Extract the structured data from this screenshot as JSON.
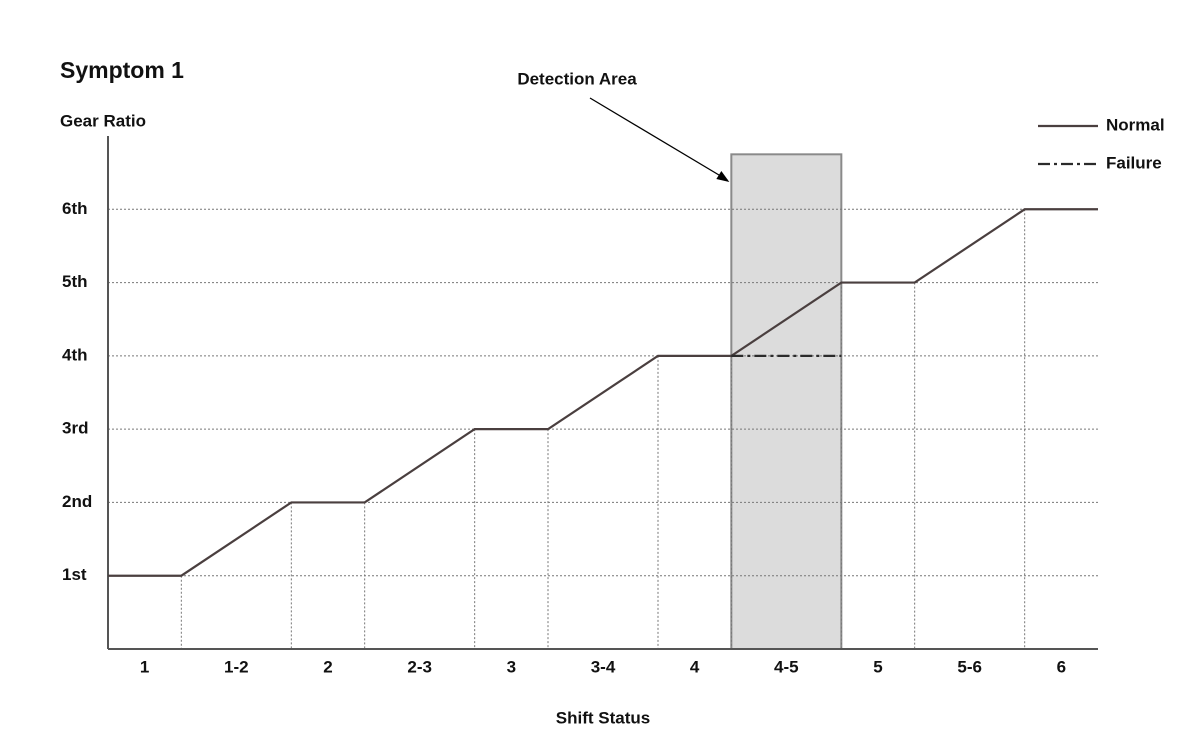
{
  "chart_data": {
    "type": "line",
    "title": "Symptom 1",
    "y_label": "Gear Ratio",
    "x_label": "Shift Status",
    "categories": [
      "1",
      "1-2",
      "2",
      "2-3",
      "3",
      "3-4",
      "4",
      "4-5",
      "5",
      "5-6",
      "6"
    ],
    "x": [
      0,
      1,
      2.5,
      3.5,
      5,
      6,
      7.5,
      8.5,
      10,
      11,
      12.5,
      13.5
    ],
    "xlim": [
      0,
      13.5
    ],
    "ylim": [
      0,
      7
    ],
    "yticks": [
      {
        "value": 1,
        "label": "1st"
      },
      {
        "value": 2,
        "label": "2nd"
      },
      {
        "value": 3,
        "label": "3rd"
      },
      {
        "value": 4,
        "label": "4th"
      },
      {
        "value": 5,
        "label": "5th"
      },
      {
        "value": 6,
        "label": "6th"
      }
    ],
    "grid": true,
    "legend": "top-right",
    "series": [
      {
        "name": "Normal",
        "color": "#4a3f3f",
        "style": "solid",
        "values": [
          1,
          1,
          2,
          2,
          3,
          3,
          4,
          4,
          5,
          5,
          6,
          6
        ]
      },
      {
        "name": "Failure",
        "color": "#2b2b2b",
        "style": "dash-dot",
        "values": [
          null,
          null,
          null,
          null,
          null,
          null,
          null,
          4,
          4,
          null,
          null,
          null
        ]
      }
    ],
    "annotation": {
      "label": "Detection Area",
      "x": [
        8.5,
        10
      ],
      "y_top": 6.75
    }
  }
}
